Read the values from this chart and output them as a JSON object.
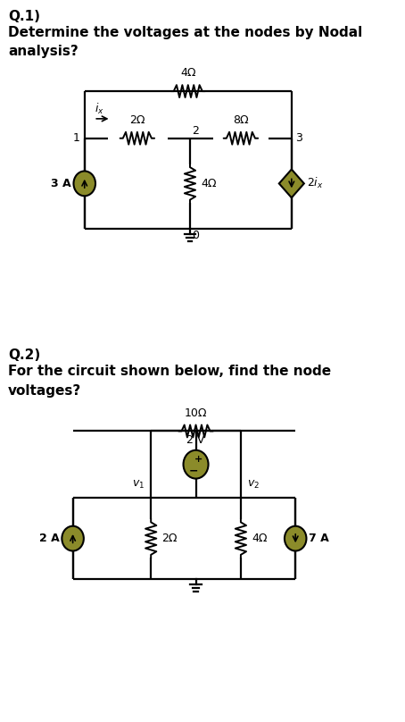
{
  "bg_color": "#ffffff",
  "q1_label": "Q.1)",
  "q1_text_line1": "Determine the voltages at the nodes by Nodal",
  "q1_text_line2": "analysis?",
  "q2_label": "Q.2)",
  "q2_text_line1": "For the circuit shown below, find the node",
  "q2_text_line2": "voltages?",
  "olive_fill": "#8b8b2a",
  "source_fill": "#8b8b2a"
}
